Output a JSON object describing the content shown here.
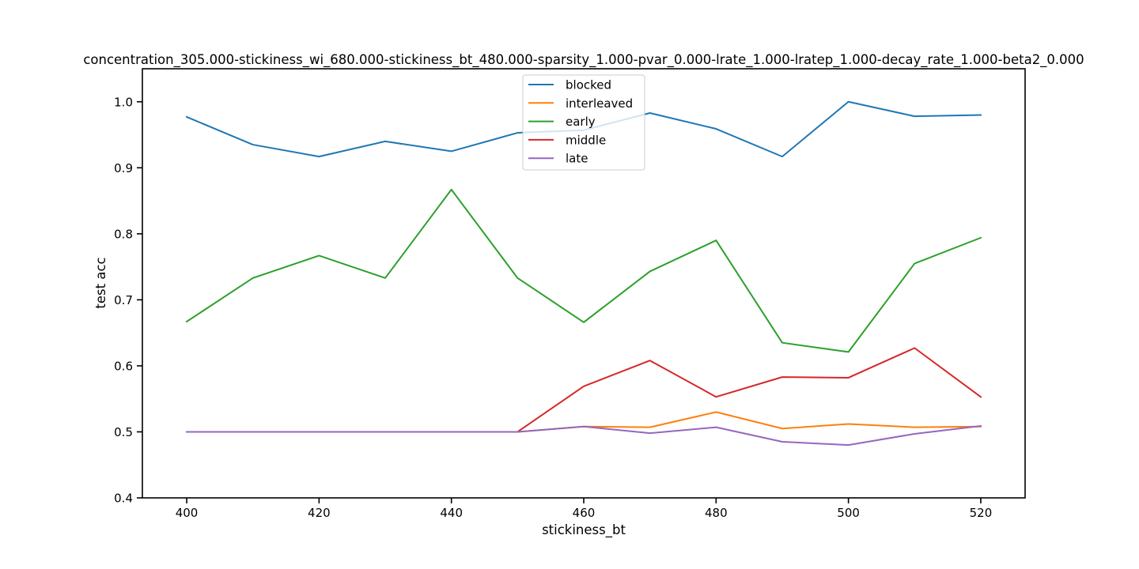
{
  "chart_data": {
    "type": "line",
    "title": "concentration_305.000-stickiness_wi_680.000-stickiness_bt_480.000-sparsity_1.000-pvar_0.000-lrate_1.000-lratep_1.000-decay_rate_1.000-beta2_0.000",
    "xlabel": "stickiness_bt",
    "ylabel": "test acc",
    "xlim": [
      393.3,
      526.7
    ],
    "ylim": [
      0.4,
      1.05
    ],
    "xticks": [
      400,
      420,
      440,
      460,
      480,
      500,
      520
    ],
    "xtick_labels": [
      "400",
      "420",
      "440",
      "460",
      "480",
      "500",
      "520"
    ],
    "yticks": [
      0.4,
      0.5,
      0.6,
      0.7,
      0.8,
      0.9,
      1.0
    ],
    "ytick_labels": [
      "0.4",
      "0.5",
      "0.6",
      "0.7",
      "0.8",
      "0.9",
      "1.0"
    ],
    "grid": false,
    "legend_position": "top-center",
    "x": [
      400,
      410,
      420,
      430,
      440,
      450,
      460,
      470,
      480,
      490,
      500,
      510,
      520
    ],
    "series": [
      {
        "name": "blocked",
        "color": "#1f77b4",
        "values": [
          0.977,
          0.935,
          0.917,
          0.94,
          0.925,
          0.953,
          0.957,
          0.983,
          0.959,
          0.917,
          1.0,
          0.978,
          0.98
        ]
      },
      {
        "name": "interleaved",
        "color": "#ff7f0e",
        "values": [
          0.5,
          0.5,
          0.5,
          0.5,
          0.5,
          0.5,
          0.508,
          0.507,
          0.53,
          0.505,
          0.512,
          0.507,
          0.508
        ]
      },
      {
        "name": "early",
        "color": "#2ca02c",
        "values": [
          0.667,
          0.733,
          0.767,
          0.733,
          0.867,
          0.733,
          0.666,
          0.743,
          0.79,
          0.635,
          0.621,
          0.755,
          0.794
        ]
      },
      {
        "name": "middle",
        "color": "#d62728",
        "values": [
          0.5,
          0.5,
          0.5,
          0.5,
          0.5,
          0.5,
          0.569,
          0.608,
          0.553,
          0.583,
          0.582,
          0.627,
          0.553
        ]
      },
      {
        "name": "late",
        "color": "#9467bd",
        "values": [
          0.5,
          0.5,
          0.5,
          0.5,
          0.5,
          0.5,
          0.508,
          0.498,
          0.507,
          0.485,
          0.48,
          0.497,
          0.509
        ]
      }
    ]
  }
}
